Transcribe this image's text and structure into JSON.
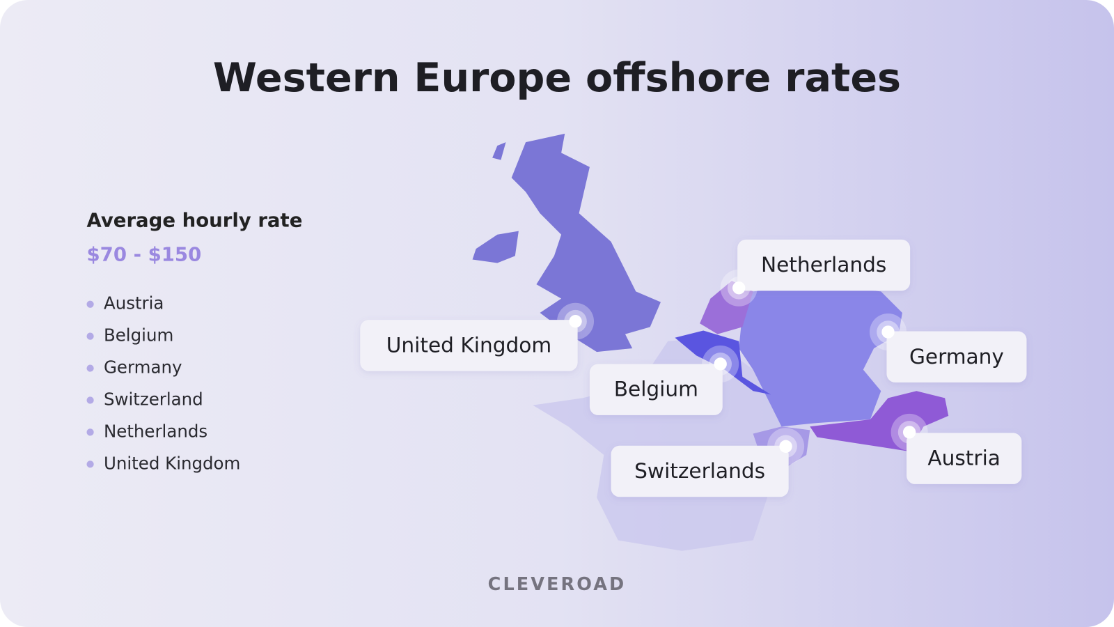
{
  "header": {
    "title": "Western Europe offshore rates"
  },
  "rate": {
    "label": "Average hourly rate",
    "value": "$70 - $150"
  },
  "countries": [
    "Austria",
    "Belgium",
    "Germany",
    "Switzerland",
    "Netherlands",
    "United Kingdom"
  ],
  "map_labels": [
    "Netherlands",
    "United Kingdom",
    "Germany",
    "Belgium",
    "Switzerlands",
    "Austria"
  ],
  "brand": "CLEVEROAD"
}
